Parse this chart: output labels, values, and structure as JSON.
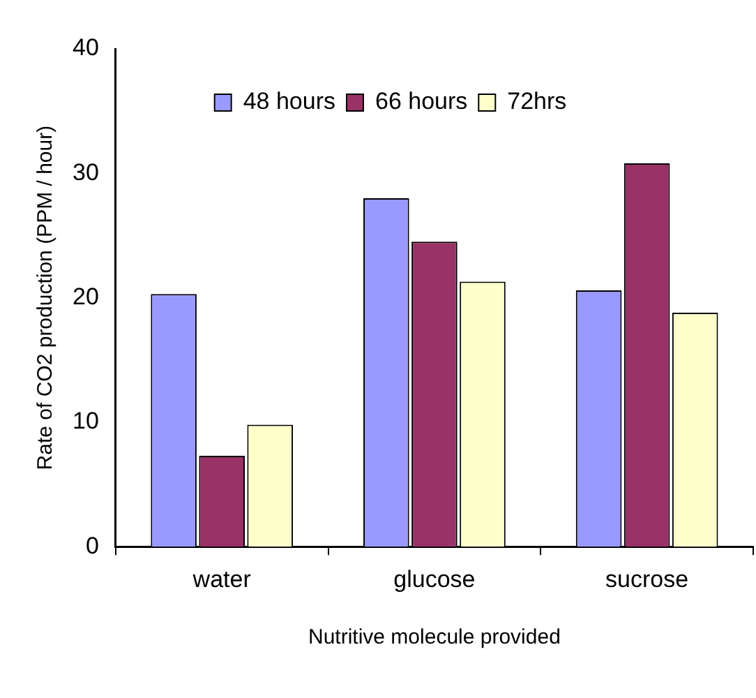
{
  "chart_data": {
    "type": "bar",
    "xlabel": "Nutritive molecule provided",
    "ylabel": "Rate of CO2 production (PPM / hour)",
    "categories": [
      "water",
      "glucose",
      "sucrose"
    ],
    "series": [
      {
        "name": "48 hours",
        "color": "#9999ff",
        "values": [
          20.3,
          28.0,
          20.6
        ]
      },
      {
        "name": "66 hours",
        "color": "#993366",
        "values": [
          7.3,
          24.5,
          30.8
        ]
      },
      {
        "name": "72hrs",
        "color": "#ffffcc",
        "values": [
          9.8,
          21.3,
          18.8
        ]
      }
    ],
    "ylim": [
      0,
      40
    ],
    "yticks": [
      0,
      10,
      20,
      30,
      40
    ],
    "grid": false,
    "legend": "top"
  }
}
